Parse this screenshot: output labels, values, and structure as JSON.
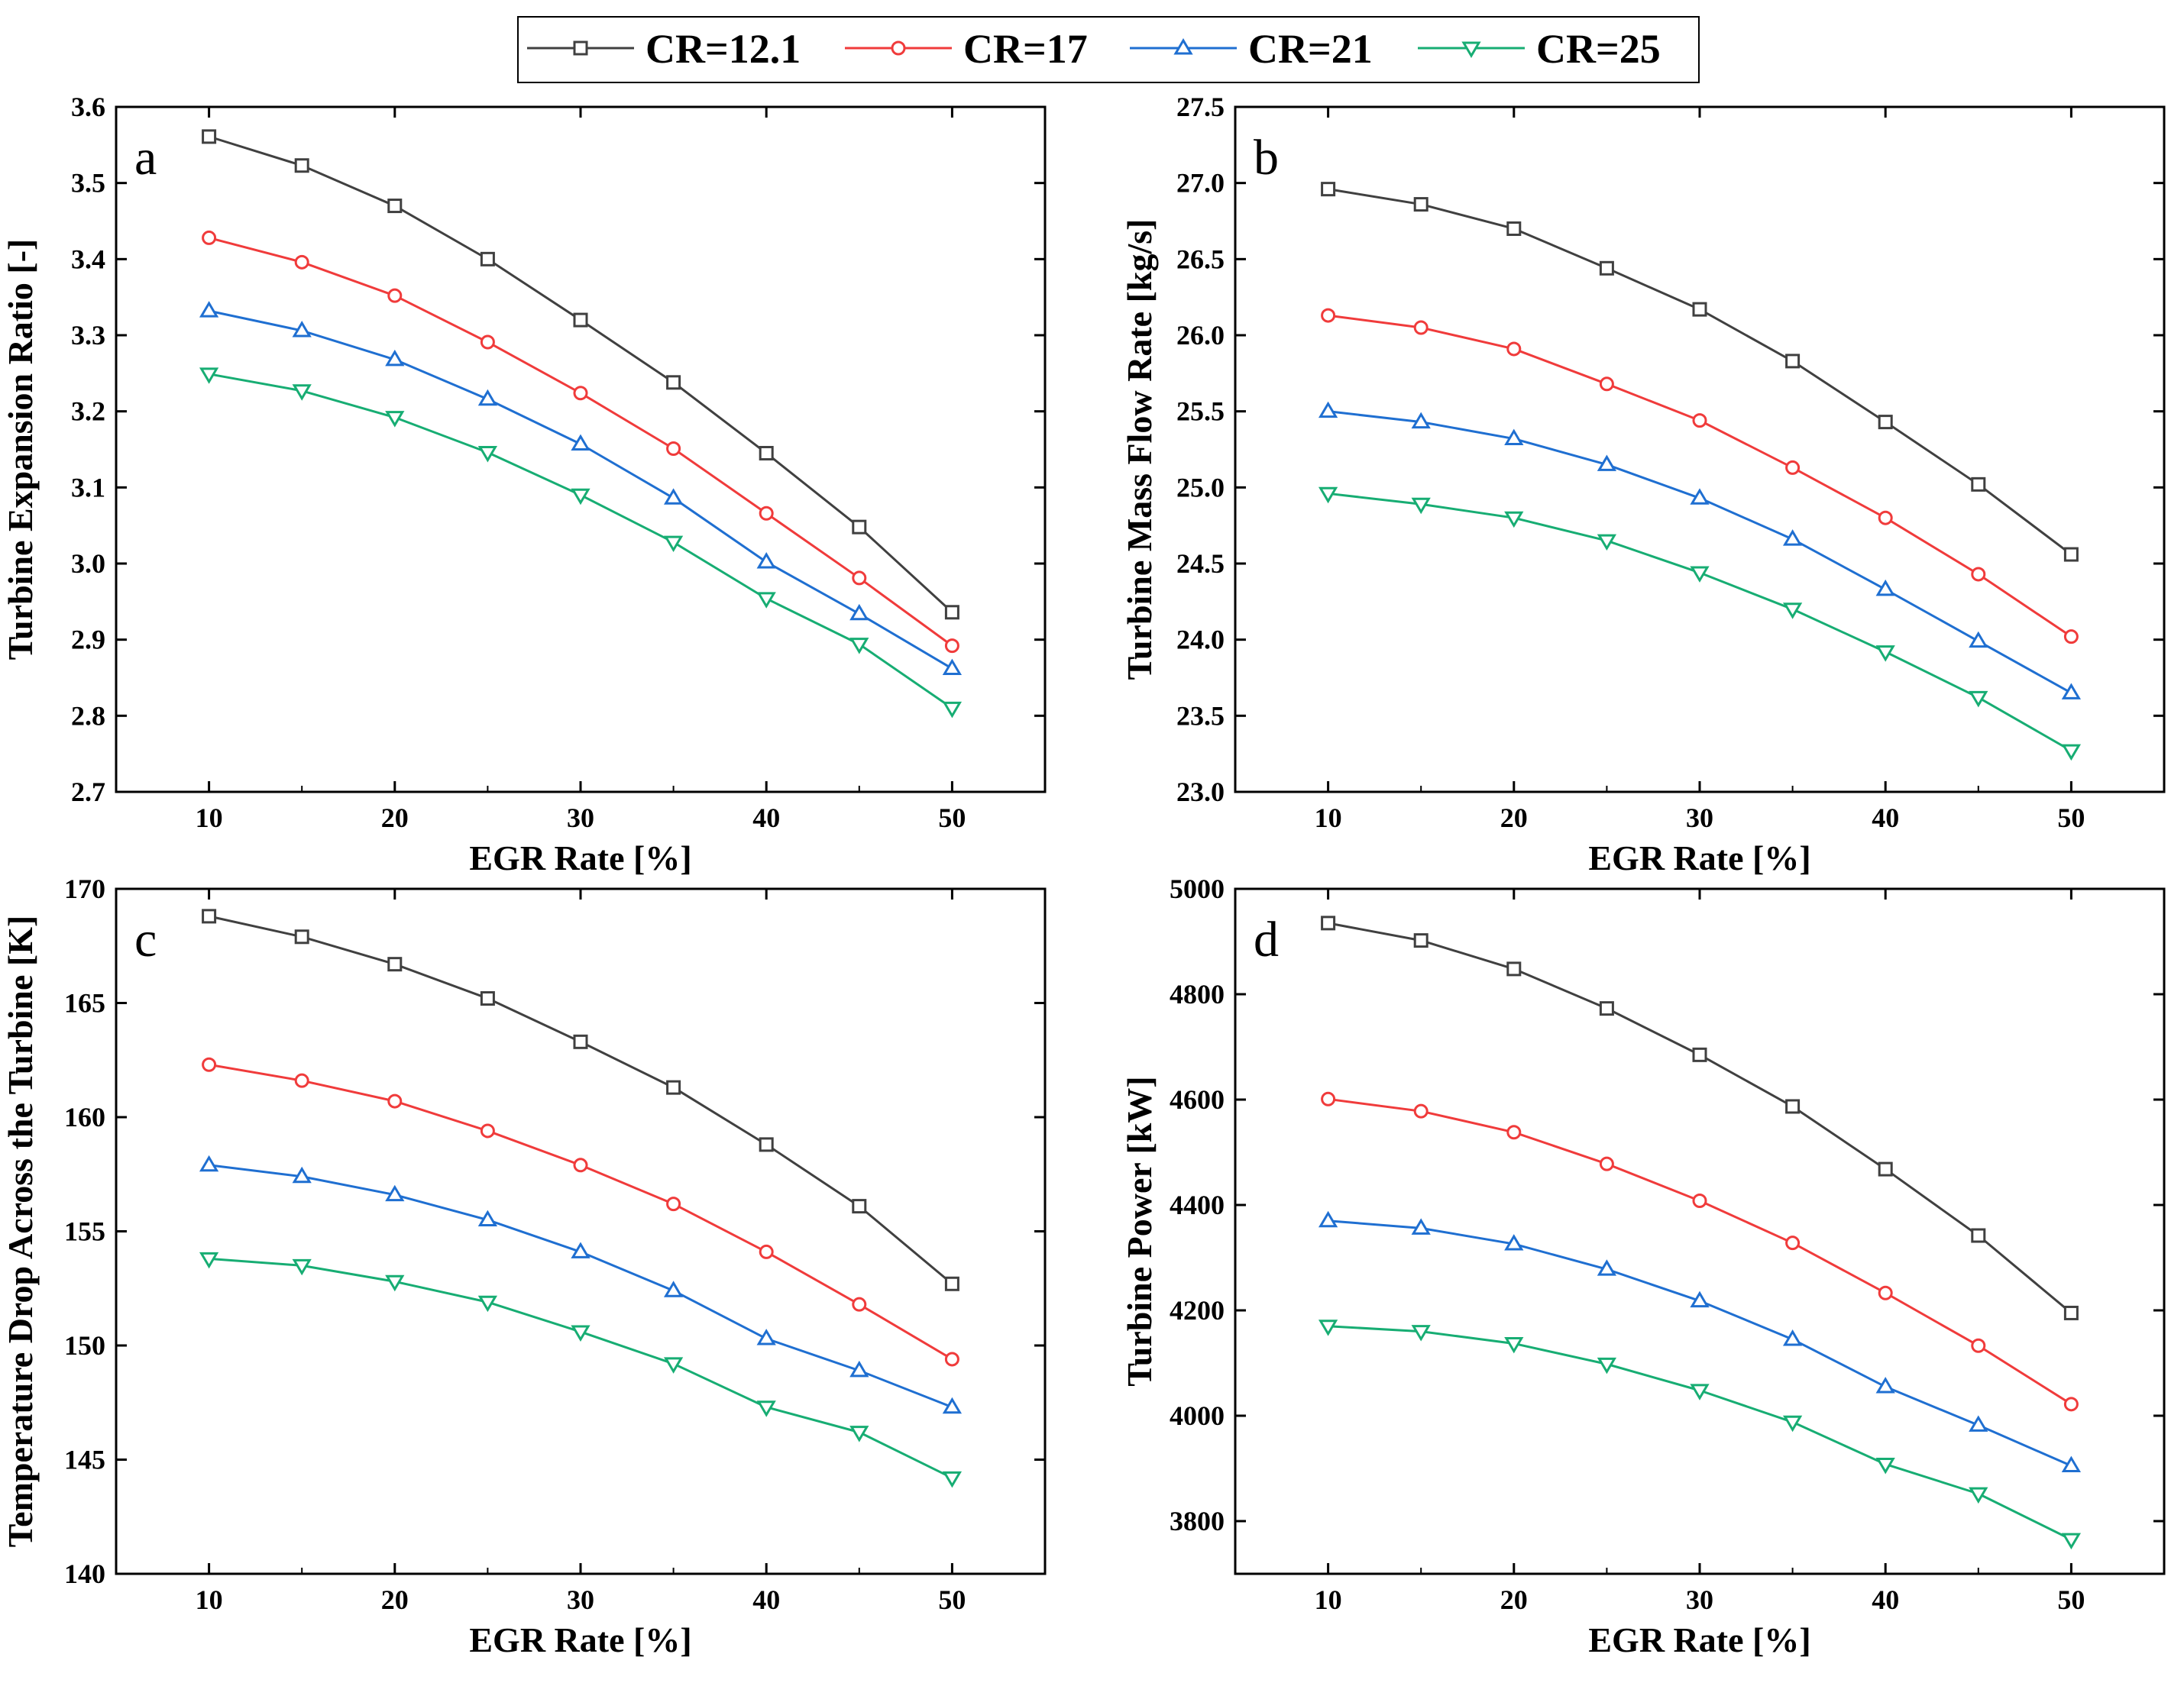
{
  "legend": [
    {
      "name": "CR=12.1",
      "color": "#404040",
      "marker": "square"
    },
    {
      "name": "CR=17",
      "color": "#f03b3b",
      "marker": "circle"
    },
    {
      "name": "CR=21",
      "color": "#1f6fd1",
      "marker": "triangle-up"
    },
    {
      "name": "CR=25",
      "color": "#17ad73",
      "marker": "triangle-down"
    }
  ],
  "chart_data": [
    {
      "type": "line",
      "panel": "a",
      "title": "",
      "xlabel": "EGR Rate [%]",
      "ylabel": "Turbine Expansion Ratio [-]",
      "xlim": [
        5,
        55
      ],
      "ylim": [
        2.7,
        3.6
      ],
      "xticks": [
        "10",
        "20",
        "30",
        "40",
        "50"
      ],
      "yticks": [
        "2.7",
        "2.8",
        "2.9",
        "3.0",
        "3.1",
        "3.2",
        "3.3",
        "3.4",
        "3.5",
        "3.6"
      ],
      "x": [
        10,
        15,
        20,
        25,
        30,
        35,
        40,
        45,
        50
      ],
      "series": [
        {
          "name": "CR=12.1",
          "values": [
            3.561,
            3.523,
            3.47,
            3.4,
            3.32,
            3.238,
            3.145,
            3.048,
            2.936
          ]
        },
        {
          "name": "CR=17",
          "values": [
            3.428,
            3.396,
            3.352,
            3.291,
            3.224,
            3.151,
            3.066,
            2.981,
            2.892
          ]
        },
        {
          "name": "CR=21",
          "values": [
            3.332,
            3.306,
            3.268,
            3.216,
            3.157,
            3.086,
            3.002,
            2.934,
            2.862
          ]
        },
        {
          "name": "CR=25",
          "values": [
            3.249,
            3.227,
            3.192,
            3.146,
            3.09,
            3.028,
            2.954,
            2.894,
            2.81
          ]
        }
      ]
    },
    {
      "type": "line",
      "panel": "b",
      "title": "",
      "xlabel": "EGR Rate [%]",
      "ylabel": "Turbine Mass Flow Rate [kg/s]",
      "xlim": [
        5,
        55
      ],
      "ylim": [
        23.0,
        27.5
      ],
      "xticks": [
        "10",
        "20",
        "30",
        "40",
        "50"
      ],
      "yticks": [
        "23.0",
        "23.5",
        "24.0",
        "24.5",
        "25.0",
        "25.5",
        "26.0",
        "26.5",
        "27.0",
        "27.5"
      ],
      "x": [
        10,
        15,
        20,
        25,
        30,
        35,
        40,
        45,
        50
      ],
      "series": [
        {
          "name": "CR=12.1",
          "values": [
            26.96,
            26.86,
            26.7,
            26.44,
            26.17,
            25.83,
            25.43,
            25.02,
            24.56
          ]
        },
        {
          "name": "CR=17",
          "values": [
            26.13,
            26.05,
            25.91,
            25.68,
            25.44,
            25.13,
            24.8,
            24.43,
            24.02
          ]
        },
        {
          "name": "CR=21",
          "values": [
            25.5,
            25.43,
            25.32,
            25.15,
            24.93,
            24.66,
            24.33,
            23.99,
            23.65
          ]
        },
        {
          "name": "CR=25",
          "values": [
            24.96,
            24.89,
            24.8,
            24.65,
            24.44,
            24.2,
            23.92,
            23.62,
            23.27
          ]
        }
      ]
    },
    {
      "type": "line",
      "panel": "c",
      "title": "",
      "xlabel": "EGR Rate [%]",
      "ylabel": "Temperature Drop Across the Turbine [K]",
      "xlim": [
        5,
        55
      ],
      "ylim": [
        140,
        170
      ],
      "xticks": [
        "10",
        "20",
        "30",
        "40",
        "50"
      ],
      "yticks": [
        "140",
        "145",
        "150",
        "155",
        "160",
        "165",
        "170"
      ],
      "x": [
        10,
        15,
        20,
        25,
        30,
        35,
        40,
        45,
        50
      ],
      "series": [
        {
          "name": "CR=12.1",
          "values": [
            168.8,
            167.9,
            166.7,
            165.2,
            163.3,
            161.3,
            158.8,
            156.1,
            152.7
          ]
        },
        {
          "name": "CR=17",
          "values": [
            162.3,
            161.6,
            160.7,
            159.4,
            157.9,
            156.2,
            154.1,
            151.8,
            149.4
          ]
        },
        {
          "name": "CR=21",
          "values": [
            157.9,
            157.4,
            156.6,
            155.5,
            154.1,
            152.4,
            150.3,
            148.9,
            147.3
          ]
        },
        {
          "name": "CR=25",
          "values": [
            153.8,
            153.5,
            152.8,
            151.9,
            150.6,
            149.2,
            147.3,
            146.2,
            144.2
          ]
        }
      ]
    },
    {
      "type": "line",
      "panel": "d",
      "title": "",
      "xlabel": "EGR Rate [%]",
      "ylabel": "Turbine Power [kW]",
      "xlim": [
        5,
        55
      ],
      "ylim": [
        3700,
        5000
      ],
      "xticks": [
        "10",
        "20",
        "30",
        "40",
        "50"
      ],
      "yticks": [
        "3800",
        "4000",
        "4200",
        "4400",
        "4600",
        "4800",
        "5000"
      ],
      "x": [
        10,
        15,
        20,
        25,
        30,
        35,
        40,
        45,
        50
      ],
      "series": [
        {
          "name": "CR=12.1",
          "values": [
            4935,
            4902,
            4848,
            4773,
            4685,
            4587,
            4468,
            4342,
            4195
          ]
        },
        {
          "name": "CR=17",
          "values": [
            4601,
            4578,
            4538,
            4478,
            4408,
            4328,
            4233,
            4133,
            4022
          ]
        },
        {
          "name": "CR=21",
          "values": [
            4370,
            4356,
            4326,
            4278,
            4218,
            4145,
            4055,
            3982,
            3905
          ]
        },
        {
          "name": "CR=25",
          "values": [
            4170,
            4160,
            4137,
            4098,
            4048,
            3988,
            3908,
            3852,
            3765
          ]
        }
      ]
    }
  ]
}
